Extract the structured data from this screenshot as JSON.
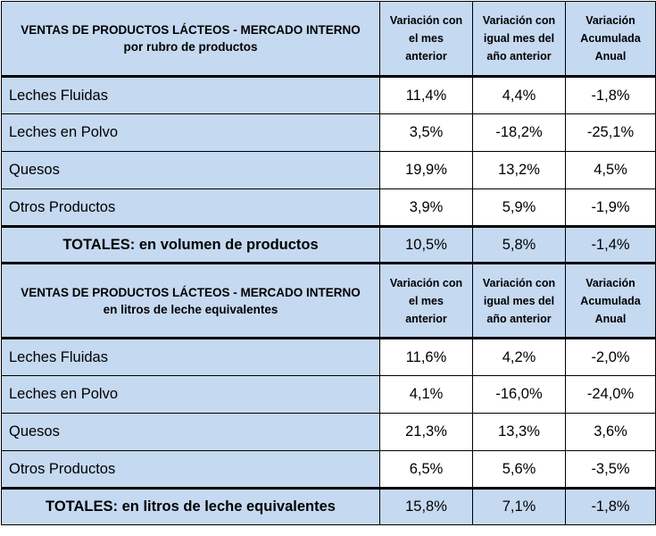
{
  "table1": {
    "title_line1": "VENTAS DE PRODUCTOS LÁCTEOS - MERCADO INTERNO",
    "title_line2": "por rubro de productos",
    "col_headers": [
      [
        "Variación con",
        "el mes",
        "anterior"
      ],
      [
        "Variación con",
        "igual mes del",
        "año anterior"
      ],
      [
        "Variación",
        "Acumulada",
        "Anual"
      ]
    ],
    "rows": [
      {
        "label": "Leches Fluidas",
        "v1": "11,4%",
        "v2": "4,4%",
        "v3": "-1,8%"
      },
      {
        "label": "Leches en Polvo",
        "v1": "3,5%",
        "v2": "-18,2%",
        "v3": "-25,1%"
      },
      {
        "label": "Quesos",
        "v1": "19,9%",
        "v2": "13,2%",
        "v3": "4,5%"
      },
      {
        "label": "Otros Productos",
        "v1": "3,9%",
        "v2": "5,9%",
        "v3": "-1,9%"
      }
    ],
    "total": {
      "label": "TOTALES: en volumen de productos",
      "v1": "10,5%",
      "v2": "5,8%",
      "v3": "-1,4%"
    }
  },
  "table2": {
    "title_line1": "VENTAS DE PRODUCTOS LÁCTEOS - MERCADO INTERNO",
    "title_line2": "en litros de leche equivalentes",
    "col_headers": [
      [
        "Variación con",
        "el mes",
        "anterior"
      ],
      [
        "Variación con",
        "igual mes del",
        "año anterior"
      ],
      [
        "Variación",
        "Acumulada",
        "Anual"
      ]
    ],
    "rows": [
      {
        "label": "Leches Fluidas",
        "v1": "11,6%",
        "v2": "4,2%",
        "v3": "-2,0%"
      },
      {
        "label": "Leches en Polvo",
        "v1": "4,1%",
        "v2": "-16,0%",
        "v3": "-24,0%"
      },
      {
        "label": "Quesos",
        "v1": "21,3%",
        "v2": "13,3%",
        "v3": "3,6%"
      },
      {
        "label": "Otros Productos",
        "v1": "6,5%",
        "v2": "5,6%",
        "v3": "-3,5%"
      }
    ],
    "total": {
      "label": "TOTALES: en litros de leche equivalentes",
      "v1": "15,8%",
      "v2": "7,1%",
      "v3": "-1,8%"
    }
  }
}
